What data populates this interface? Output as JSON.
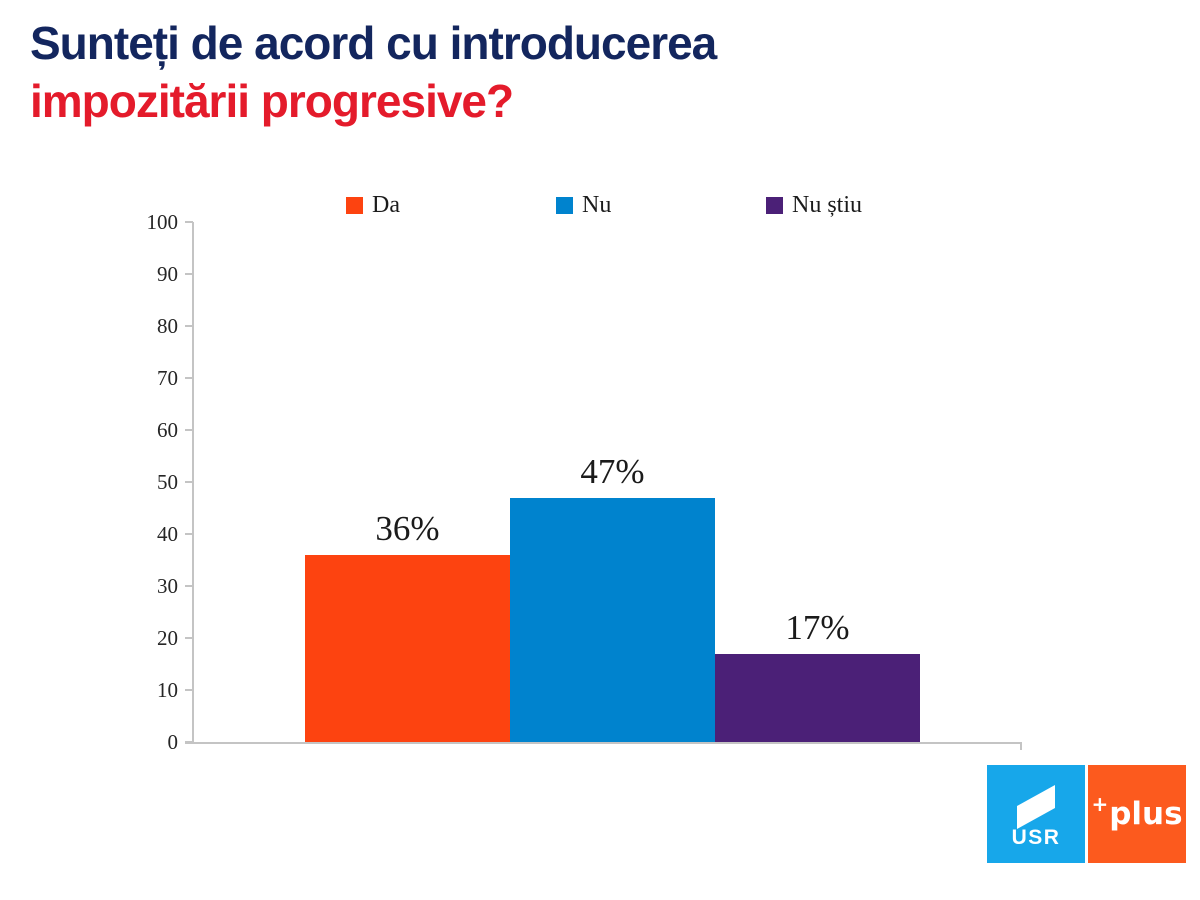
{
  "title": {
    "line1": "Sunteți de acord cu introducerea",
    "line2": "impozitării progresive?",
    "line1_color": "#13265E",
    "line2_color": "#E41B2B"
  },
  "chart_data": {
    "type": "bar",
    "title": "Sunteți de acord cu introducerea impozitării progresive?",
    "xlabel": "",
    "ylabel": "",
    "categories": [
      "Da",
      "Nu",
      "Nu știu"
    ],
    "values": [
      36,
      47,
      17
    ],
    "value_labels": [
      "36%",
      "47%",
      "17%"
    ],
    "series_colors": [
      "#FD4310",
      "#0083CE",
      "#4B2077"
    ],
    "ylim": [
      0,
      100
    ],
    "yticks": [
      0,
      10,
      20,
      30,
      40,
      50,
      60,
      70,
      80,
      90,
      100
    ],
    "grid": false,
    "legend_position": "top",
    "legend": [
      {
        "label": "Da",
        "color": "#FD4310"
      },
      {
        "label": "Nu",
        "color": "#0083CE"
      },
      {
        "label": "Nu știu",
        "color": "#4B2077"
      }
    ],
    "axis_color": "#C4C4C4",
    "text_color": "#1B1B1B"
  },
  "logos": {
    "usr": {
      "label": "USR",
      "background": "#17A7EA"
    },
    "plus": {
      "sign": "+",
      "label": "plus",
      "background": "#FC5A1E"
    }
  }
}
